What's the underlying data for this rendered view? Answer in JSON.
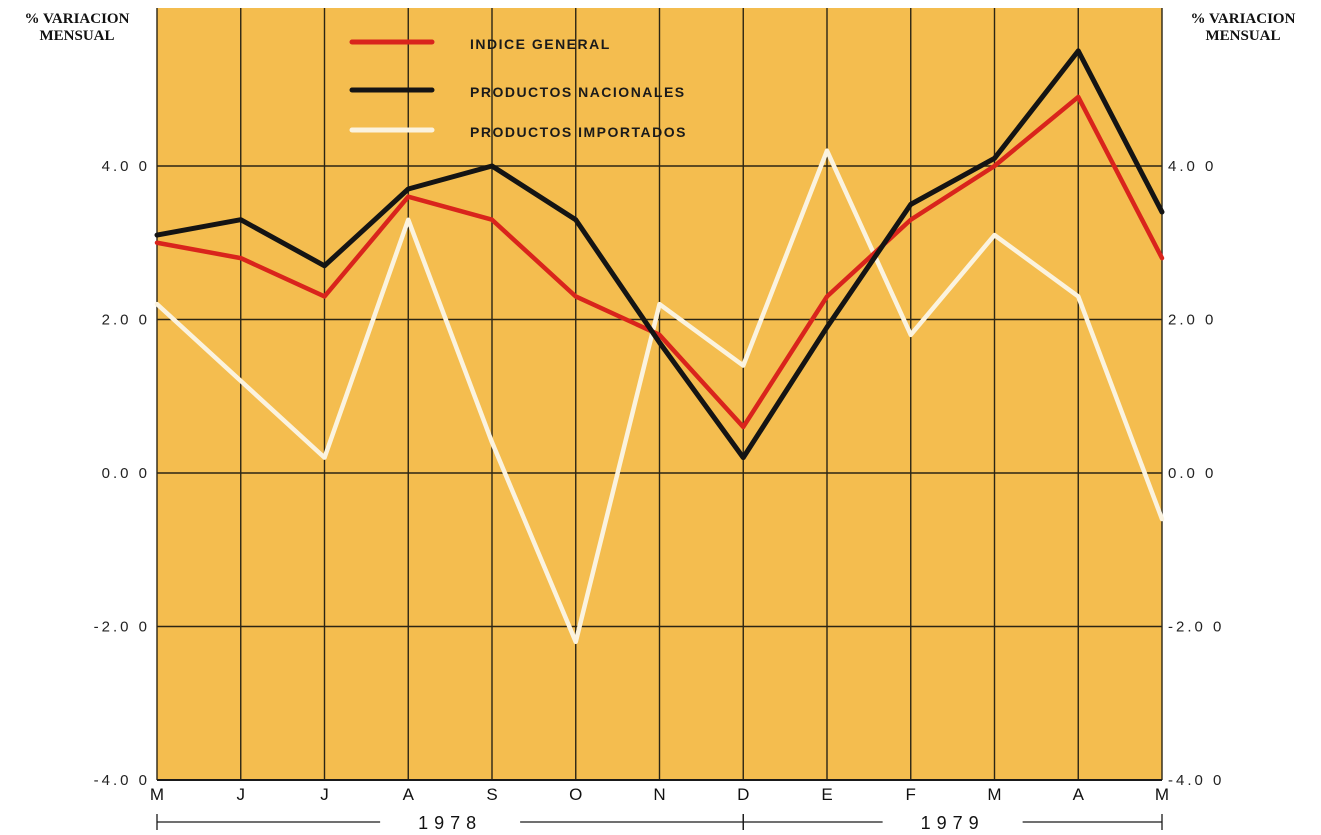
{
  "y_axis_label_left": "% VARIACION\nMENSUAL",
  "y_axis_label_right": "% VARIACION\nMENSUAL",
  "colors": {
    "background": "#f4bd4f",
    "grid": "#2b2514",
    "indice_general": "#d9241c",
    "nacionales": "#141414",
    "importados": "#fbf3df"
  },
  "chart_data": {
    "type": "line",
    "categories": [
      "M",
      "J",
      "J",
      "A",
      "S",
      "O",
      "N",
      "D",
      "E",
      "F",
      "M",
      "A",
      "M"
    ],
    "year_labels": [
      {
        "label": "1978",
        "from": 0,
        "to": 7
      },
      {
        "label": "1979",
        "from": 7,
        "to": 12
      }
    ],
    "ylim": [
      -4,
      6
    ],
    "yticks": [
      -4,
      -2,
      0,
      2,
      4
    ],
    "ytick_labels": [
      "-4.0 0",
      "-2.0 0",
      "0.0 0",
      "2.0 0",
      "4.0 0"
    ],
    "series": [
      {
        "name": "INDICE GENERAL",
        "key": "indice_general",
        "values": [
          3.0,
          2.8,
          2.3,
          3.6,
          3.3,
          2.3,
          1.8,
          0.6,
          2.3,
          3.3,
          4.0,
          4.9,
          2.8
        ]
      },
      {
        "name": "PRODUCTOS NACIONALES",
        "key": "nacionales",
        "values": [
          3.1,
          3.3,
          2.7,
          3.7,
          4.0,
          3.3,
          1.7,
          0.2,
          1.9,
          3.5,
          4.1,
          5.5,
          3.4
        ]
      },
      {
        "name": "PRODUCTOS IMPORTADOS",
        "key": "importados",
        "values": [
          2.2,
          1.2,
          0.2,
          3.3,
          0.4,
          -2.2,
          2.2,
          1.4,
          4.2,
          1.8,
          3.1,
          2.3,
          -0.6
        ]
      }
    ],
    "grid": true,
    "legend_position": "top-center"
  }
}
